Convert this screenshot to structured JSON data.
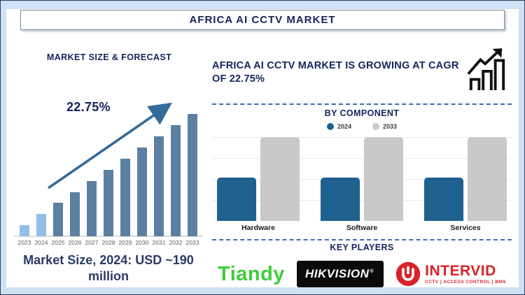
{
  "header": {
    "title": "AFRICA AI CCTV MARKET"
  },
  "left_panel": {
    "title": "MARKET SIZE & FORECAST",
    "cagr_label": "22.75%",
    "market_size_note": "Market Size, 2024: USD ~190 million"
  },
  "right_panel": {
    "headline": "AFRICA AI CCTV MARKET IS GROWING AT CAGR OF 22.75%",
    "by_component_title": "BY COMPONENT",
    "key_players_title": "KEY PLAYERS"
  },
  "key_players": {
    "tiandy": {
      "text": "Tiandy",
      "color": "#3fcd3a"
    },
    "hikvision": {
      "text": "HIKVISION",
      "mark": "®",
      "style": "white-italic-on-black"
    },
    "intervid": {
      "text": "INTERVID",
      "tagline": "CCTV | ACCESS CONTROL | BMS",
      "color": "#d8232a"
    }
  },
  "palette": {
    "navy_text": "#14245c",
    "frame_light_blue": "#cfe2f3",
    "forecast_bar_light": "#92c0e8",
    "forecast_bar_dark": "#5b80a1",
    "trend_arrow": "#336b99",
    "component_2024_blue": "#1f618f",
    "component_2033_gray": "#c9c9c9",
    "dashed_separator": "#3a6ea8"
  },
  "chart_data": [
    {
      "type": "bar",
      "title": "MARKET SIZE & FORECAST",
      "categories": [
        "2023",
        "2024",
        "2025",
        "2026",
        "2027",
        "2028",
        "2029",
        "2030",
        "2031",
        "2032",
        "2033"
      ],
      "values": [
        16,
        32,
        48,
        63,
        79,
        95,
        111,
        127,
        143,
        159,
        175
      ],
      "value_note": "relative bar heights; no value axis shown. Known point: 2024 = USD ~190 million",
      "annotations": [
        "22.75% CAGR trend arrow rising left-to-right"
      ],
      "bar_color_highlight": "#92c0e8",
      "bar_color_default": "#5b80a1",
      "highlight_indices": [
        0,
        1
      ],
      "xlabel": "",
      "ylabel": "",
      "grid": "off",
      "legend": "none"
    },
    {
      "type": "bar",
      "title": "BY COMPONENT",
      "categories": [
        "Hardware",
        "Software",
        "Services"
      ],
      "series": [
        {
          "name": "2024",
          "values": [
            62,
            62,
            62
          ],
          "color": "#1f618f"
        },
        {
          "name": "2033",
          "values": [
            120,
            120,
            120
          ],
          "color": "#c9c9c9"
        }
      ],
      "value_note": "relative bar heights; no value axis shown",
      "legend_position": "top-center",
      "grid": "faint horizontal lines",
      "xlabel": "",
      "ylabel": ""
    }
  ]
}
